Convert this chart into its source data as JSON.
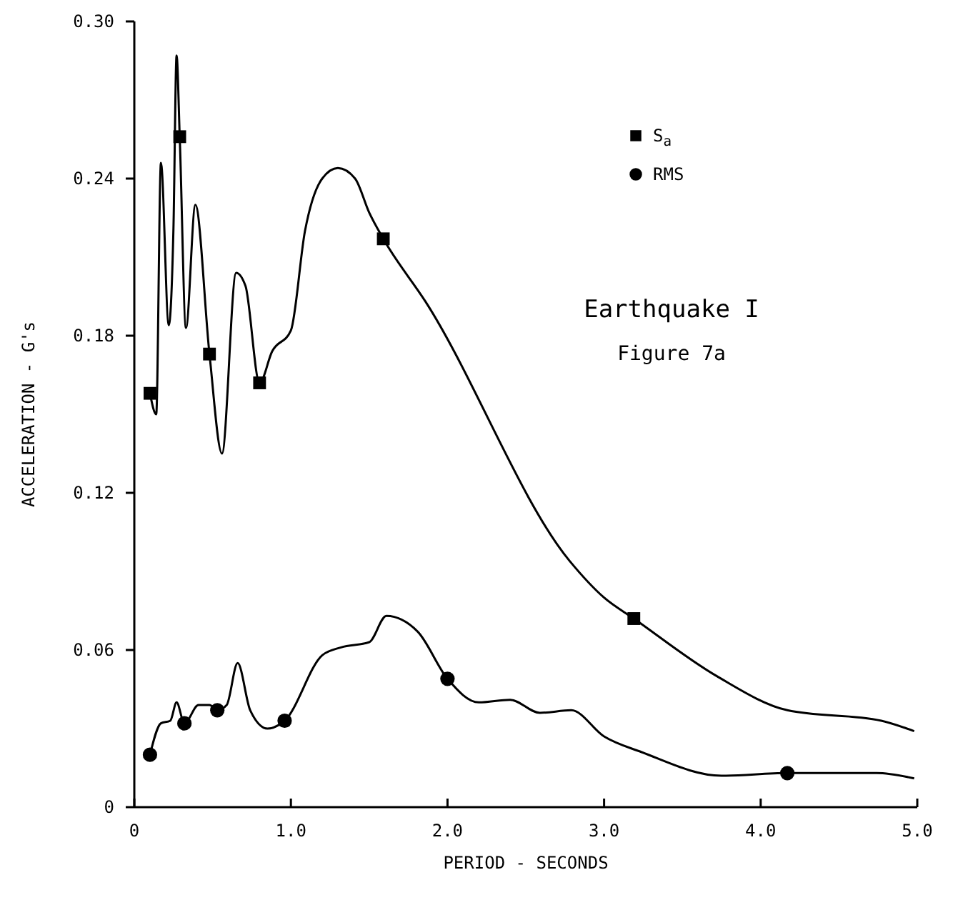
{
  "chart_data": {
    "type": "line",
    "xlabel": "PERIOD - SECONDS",
    "ylabel": "ACCELERATION - G's",
    "xlim": [
      0,
      5
    ],
    "xticks": [
      0,
      {
        "value": 1,
        "label": "1.0"
      },
      {
        "value": 2,
        "label": "2.0"
      },
      {
        "value": 3,
        "label": "3.0"
      },
      {
        "value": 4,
        "label": "4.0"
      },
      {
        "value": 5,
        "label": "5.0"
      }
    ],
    "ylim": [
      0,
      0.3
    ],
    "yticks": [
      0,
      0.06,
      0.12,
      0.18,
      0.24,
      {
        "value": 0.3,
        "label": "0.30"
      }
    ],
    "grid": false,
    "legend": "top right",
    "annotations": [
      "Earthquake I",
      "Figure 7a"
    ],
    "series": [
      {
        "marker": "none",
        "color": "#000000",
        "x": [
          0.1,
          0.14,
          0.17,
          0.22,
          0.25,
          0.27,
          0.29,
          0.33,
          0.39,
          0.48,
          0.56,
          0.65,
          0.71,
          0.8,
          0.88,
          1.0,
          1.09,
          1.2,
          1.3,
          1.41,
          1.5,
          1.59,
          1.86,
          2.78,
          3.0,
          3.19,
          3.72,
          4.17,
          4.77,
          4.98
        ],
        "values": [
          0.158,
          0.15,
          0.246,
          0.184,
          0.221,
          0.287,
          0.256,
          0.183,
          0.23,
          0.173,
          0.135,
          0.204,
          0.199,
          0.162,
          0.174,
          0.182,
          0.22,
          0.24,
          0.244,
          0.24,
          0.227,
          0.217,
          0.193,
          0.094,
          0.08,
          0.072,
          0.05,
          0.037,
          0.033,
          0.029
        ]
      },
      {
        "marker": "none",
        "color": "#000000",
        "x": [
          0.1,
          0.17,
          0.23,
          0.27,
          0.32,
          0.41,
          0.48,
          0.53,
          0.59,
          0.66,
          0.74,
          0.85,
          0.96,
          1.2,
          1.32,
          1.5,
          1.61,
          1.81,
          2.0,
          2.2,
          2.4,
          2.59,
          2.79,
          3.0,
          3.24,
          3.75,
          4.17,
          4.74,
          4.98
        ],
        "values": [
          0.02,
          0.032,
          0.033,
          0.04,
          0.032,
          0.039,
          0.039,
          0.037,
          0.039,
          0.055,
          0.037,
          0.03,
          0.033,
          0.058,
          0.061,
          0.063,
          0.073,
          0.067,
          0.049,
          0.04,
          0.041,
          0.036,
          0.037,
          0.027,
          0.021,
          0.012,
          0.013,
          0.013,
          0.011
        ]
      },
      {
        "type": "scatter",
        "name": "S$_{a}$",
        "marker": "square",
        "color": "#000000",
        "x": [
          0.1,
          0.29,
          0.48,
          0.8,
          1.59,
          3.19
        ],
        "values": [
          0.158,
          0.256,
          0.173,
          0.162,
          0.217,
          0.072
        ]
      },
      {
        "type": "scatter",
        "name": "RMS",
        "marker": "circle",
        "color": "#000000",
        "x": [
          0.1,
          0.32,
          0.53,
          0.96,
          2.0,
          4.17
        ],
        "values": [
          0.02,
          0.032,
          0.037,
          0.033,
          0.049,
          0.013
        ]
      }
    ]
  }
}
